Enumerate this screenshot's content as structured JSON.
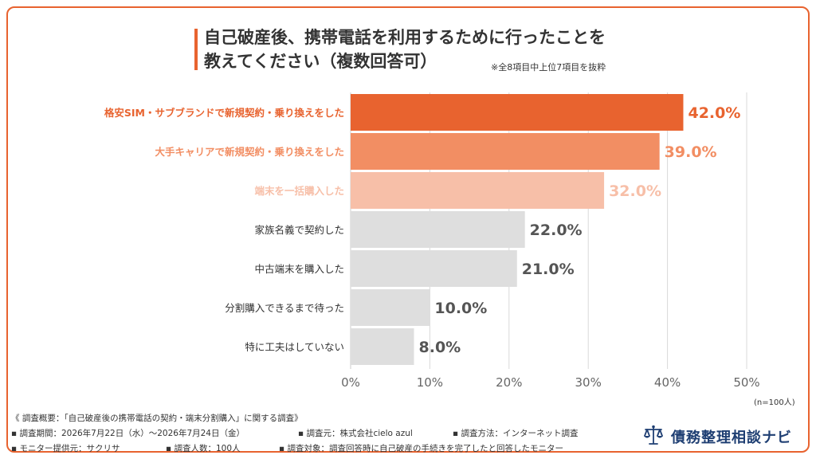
{
  "title_line1": "自己破産後、携帯電話を利用するために行ったことを",
  "title_line2": "教えてください（複数回答可）",
  "note": "※全8項目中上位7項目を抜粋",
  "sample_label": "(n=100人)",
  "chart_data": {
    "type": "bar",
    "orientation": "horizontal",
    "categories": [
      "格安SIM・サブブランドで新規契約・乗り換えをした",
      "大手キャリアで新規契約・乗り換えをした",
      "端末を一括購入した",
      "家族名義で契約した",
      "中古端末を購入した",
      "分割購入できるまで待った",
      "特に工夫はしていない"
    ],
    "values": [
      42.0,
      39.0,
      32.0,
      22.0,
      21.0,
      10.0,
      8.0
    ],
    "value_labels": [
      "42.0%",
      "39.0%",
      "32.0%",
      "22.0%",
      "21.0%",
      "10.0%",
      "8.0%"
    ],
    "bar_colors": [
      "#e8632f",
      "#f28e63",
      "#f7bfa8",
      "#dedede",
      "#dedede",
      "#dedede",
      "#dedede"
    ],
    "label_colors": [
      "#e8632f",
      "#f28e63",
      "#f7bfa8",
      "#333333",
      "#333333",
      "#333333",
      "#333333"
    ],
    "value_colors": [
      "#e8632f",
      "#f28e63",
      "#f7bfa8",
      "#555555",
      "#555555",
      "#555555",
      "#555555"
    ],
    "xlim": [
      0,
      50
    ],
    "xticks": [
      "0%",
      "10%",
      "20%",
      "30%",
      "40%",
      "50%"
    ],
    "grid": true
  },
  "survey": {
    "heading": "《 調査概要：「自己破産後の携帯電話の契約・端末分割購入」に関する調査》",
    "period": "▪ 調査期間：2026年7月22日（水）〜2026年7月24日（金）",
    "source": "▪ 調査元：株式会社cielo azul",
    "method": "▪ 調査方法：インターネット調査",
    "provider": "▪ モニター提供元：サクリサ",
    "count": "▪ 調査人数：100人",
    "target": "▪ 調査対象：調査回答時に自己破産の手続きを完了したと回答したモニター"
  },
  "logo": {
    "text": "債務整理相談ナビ",
    "icon": "scales-of-justice-icon",
    "color": "#1f3f73"
  }
}
